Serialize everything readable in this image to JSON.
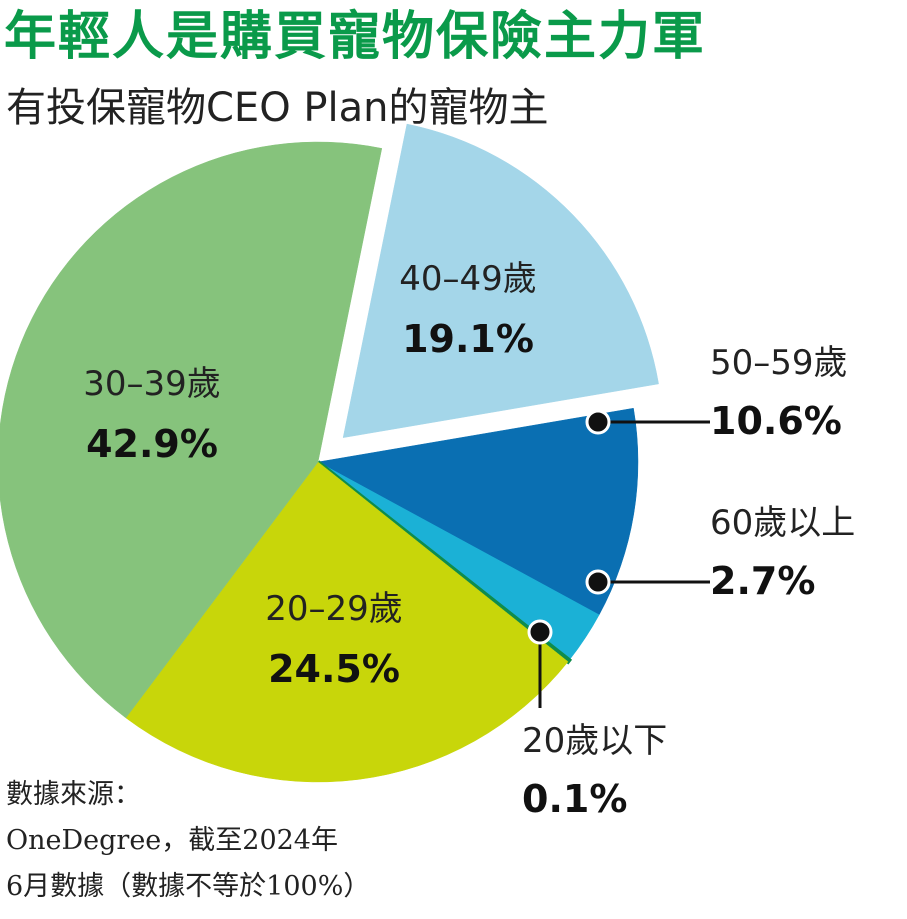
{
  "title": "年輕人是購買寵物保險主力軍",
  "subtitle": "有投保寵物CEO Plan的寵物主",
  "chart_data": {
    "type": "pie",
    "slices": [
      {
        "label": "40–49歲",
        "value": 19.1,
        "value_label": "19.1%",
        "color": "#a4d6e9"
      },
      {
        "label": "50–59歲",
        "value": 10.6,
        "value_label": "10.6%",
        "color": "#0a6fb2"
      },
      {
        "label": "60歲以上",
        "value": 2.7,
        "value_label": "2.7%",
        "color": "#1bb1d6"
      },
      {
        "label": "20歲以下",
        "value": 0.1,
        "value_label": "0.1%",
        "color": "#0f8c4c"
      },
      {
        "label": "20–29歲",
        "value": 24.5,
        "value_label": "24.5%",
        "color": "#c8d60a"
      },
      {
        "label": "30–39歲",
        "value": 42.9,
        "value_label": "42.9%",
        "color": "#86c37c"
      }
    ],
    "exploded": "40–49歲"
  },
  "source": {
    "line1": "數據來源：",
    "line2": "OneDegree，截至2024年",
    "line3": "6月數據（數據不等於100%）"
  }
}
